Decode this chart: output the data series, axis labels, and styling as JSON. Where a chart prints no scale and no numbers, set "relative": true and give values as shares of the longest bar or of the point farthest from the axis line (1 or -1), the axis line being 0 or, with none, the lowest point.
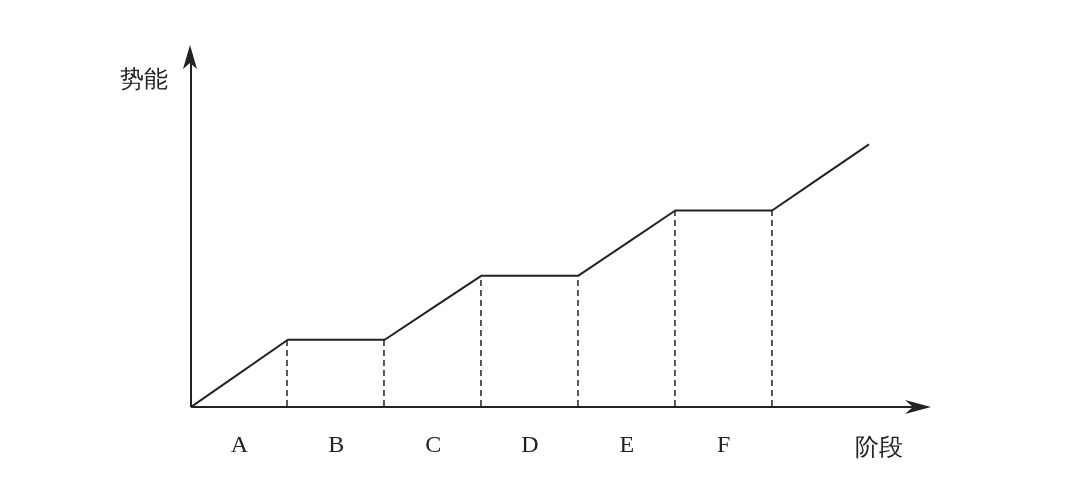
{
  "chart_data": {
    "type": "line",
    "relative": true,
    "xlabel": "阶段",
    "ylabel": "势能",
    "categories": [
      null,
      "A",
      null,
      "B",
      null,
      "C",
      null,
      "D",
      null,
      "E",
      null,
      "F",
      null,
      null,
      null
    ],
    "series": [
      {
        "color": "#222222",
        "values": [
          0,
          0.128,
          0.256,
          0.256,
          0.256,
          0.378,
          0.5,
          0.5,
          0.5,
          0.624,
          0.748,
          0.748,
          0.748,
          0.874,
          1
        ]
      }
    ]
  }
}
